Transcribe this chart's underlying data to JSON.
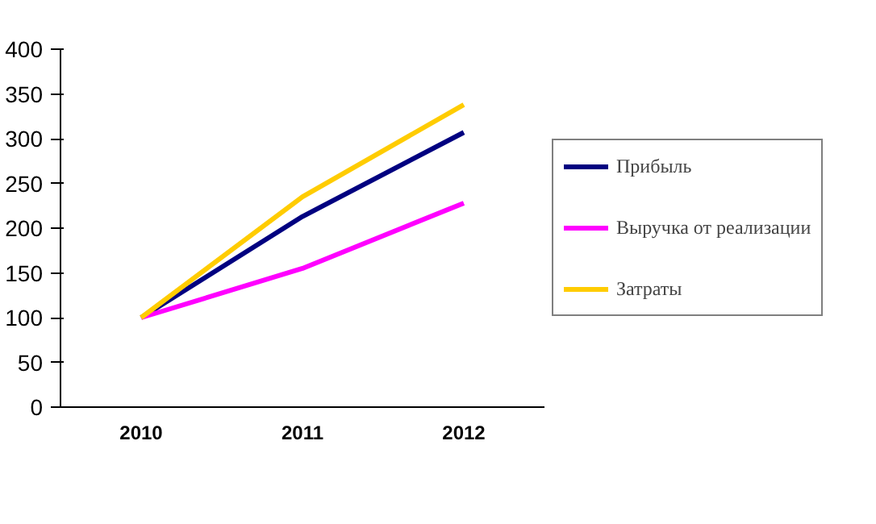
{
  "chart_data": {
    "type": "line",
    "categories": [
      "2010",
      "2011",
      "2012"
    ],
    "series": [
      {
        "name": "Прибыль",
        "color": "#000080",
        "values": [
          100,
          213,
          307
        ]
      },
      {
        "name": "Выручка от реализации",
        "color": "#ff00ff",
        "values": [
          100,
          155,
          228
        ]
      },
      {
        "name": "Затраты",
        "color": "#ffcc00",
        "values": [
          100,
          235,
          338
        ]
      }
    ],
    "ylim": [
      0,
      400
    ],
    "yticks": [
      0,
      50,
      100,
      150,
      200,
      250,
      300,
      350,
      400
    ],
    "grid": false,
    "legend": "right",
    "marker": "none",
    "line_style": "solid"
  }
}
